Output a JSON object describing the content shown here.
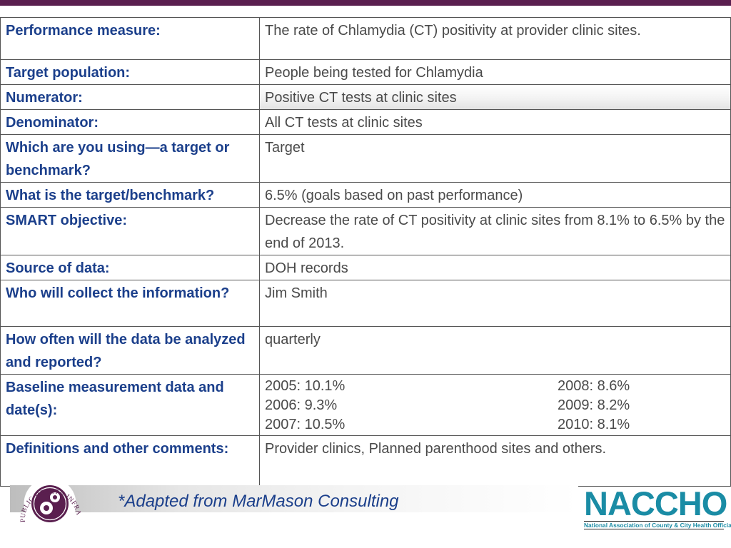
{
  "table": {
    "rows": [
      {
        "label": "Performance measure:",
        "value": "The rate of Chlamydia (CT) positivity at  provider  clinic sites."
      },
      {
        "label": "Target population:",
        "value": "People being tested for Chlamydia"
      },
      {
        "label": "Numerator:",
        "value": "Positive CT tests at clinic sites"
      },
      {
        "label": "Denominator:",
        "value": "All CT tests at  clinic sites"
      },
      {
        "label": "Which are you using—a target or benchmark?",
        "value": "Target"
      },
      {
        "label": "What is the target/benchmark?",
        "value": "6.5% (goals based on past performance)"
      },
      {
        "label": "SMART objective:",
        "value": "Decrease the rate of CT positivity at clinic sites from 8.1% to 6.5% by the end of 2013."
      },
      {
        "label": "Source of data:",
        "value": "DOH records"
      },
      {
        "label": "Who will collect the information?",
        "value": "Jim Smith"
      },
      {
        "label": "How often will the data be analyzed and reported?",
        "value": "quarterly"
      },
      {
        "label": "Baseline measurement data and date(s):",
        "values": [
          "2005:  10.1%",
          "2008:  8.6%",
          "2006:  9.3%",
          "2009:  8.2%",
          "2007:  10.5%",
          "2010: 8.1%"
        ]
      },
      {
        "label": "Definitions and other comments:",
        "value": "Provider clinics, Planned parenthood sites and others."
      }
    ]
  },
  "footer": {
    "note": "*Adapted from MarMason Consulting",
    "seal_text": "PUBLIC HEALTH INFRASTRUCTURE & SYSTEMS",
    "logo_word": "NACCHO",
    "logo_tagline": "National Association of County & City Health Officials"
  },
  "colors": {
    "accent_bar": "#5a1f4f",
    "label_text": "#1b3f8b",
    "logo": "#1a8ca5"
  }
}
